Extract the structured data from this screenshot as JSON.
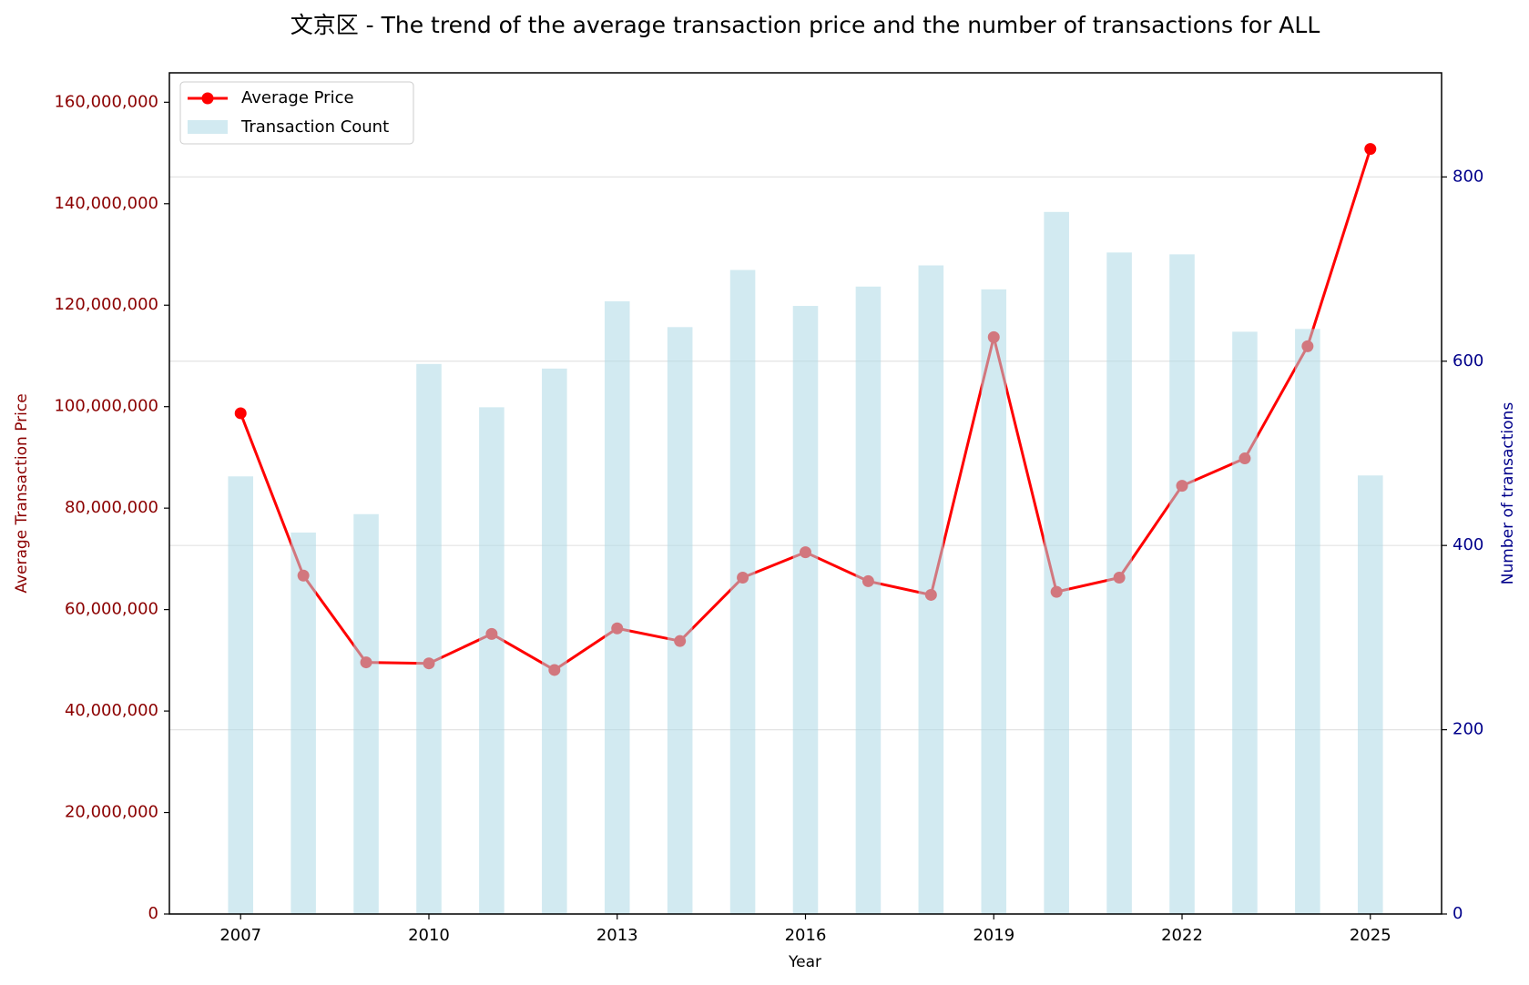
{
  "chart_data": {
    "type": "combo",
    "title": "文京区 - The trend of the average transaction price and the number of transactions for ALL",
    "xlabel": "Year",
    "ylabel": "Average Transaction Price",
    "y2label": "Number of transactions",
    "x": [
      2007,
      2008,
      2009,
      2010,
      2011,
      2012,
      2013,
      2014,
      2015,
      2016,
      2017,
      2018,
      2019,
      2020,
      2021,
      2022,
      2023,
      2024,
      2025
    ],
    "series": [
      {
        "name": "Average Price",
        "type": "line",
        "color": "#ff0000",
        "values": [
          98700000,
          66700000,
          49600000,
          49400000,
          55200000,
          48100000,
          56300000,
          53800000,
          66300000,
          71300000,
          65600000,
          62900000,
          113700000,
          63500000,
          66300000,
          84400000,
          89800000,
          111900000,
          150800000
        ]
      },
      {
        "name": "Transaction Count",
        "type": "bar",
        "axis": "y2",
        "color": "#add8e6",
        "values": [
          475,
          414,
          434,
          597,
          550,
          592,
          665,
          637,
          699,
          660,
          681,
          704,
          678,
          762,
          718,
          716,
          632,
          635,
          476
        ]
      }
    ],
    "xlim": [
      2005.865,
      2026.135
    ],
    "xticks": [
      2007,
      2010,
      2013,
      2016,
      2019,
      2022,
      2025
    ],
    "ylim": [
      0,
      165800000
    ],
    "yticks": [
      0,
      {
        "value": 20000000,
        "label": "20,000,000"
      },
      {
        "value": 40000000,
        "label": "40,000,000"
      },
      {
        "value": 60000000,
        "label": "60,000,000"
      },
      {
        "value": 80000000,
        "label": "80,000,000"
      },
      {
        "value": 100000000,
        "label": "100,000,000"
      },
      {
        "value": 120000000,
        "label": "120,000,000"
      },
      {
        "value": 140000000,
        "label": "140,000,000"
      },
      {
        "value": 160000000,
        "label": "160,000,000"
      }
    ],
    "y2lim": [
      0,
      913
    ],
    "y2ticks": [
      0,
      200,
      400,
      600,
      800
    ],
    "grid": true,
    "legend": "upper left"
  }
}
